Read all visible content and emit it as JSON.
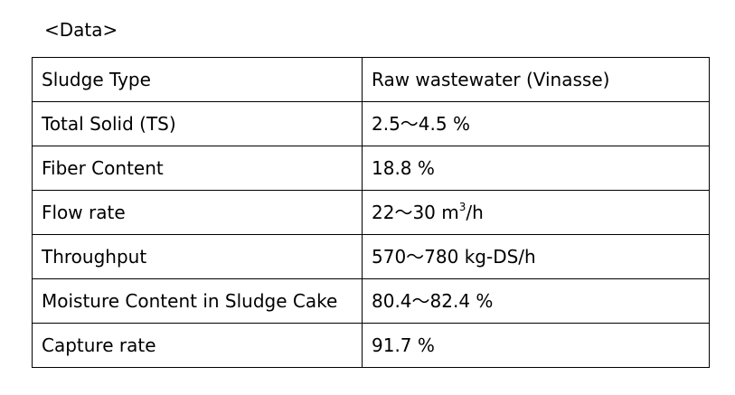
{
  "heading": "<Data>",
  "table": {
    "rows": [
      {
        "label": "Sludge Type",
        "value": "Raw wastewater (Vinasse)"
      },
      {
        "label": "Total Solid (TS)",
        "value": "2.5～4.5 %"
      },
      {
        "label": "Fiber Content",
        "value": "18.8 %"
      },
      {
        "label": "Flow rate",
        "value": "22～30 m",
        "value_sup": "3",
        "value_suffix": "/h"
      },
      {
        "label": "Throughput",
        "value": "570～780 kg-DS/h"
      },
      {
        "label": "Moisture Content in Sludge Cake",
        "value": "80.4～82.4 %"
      },
      {
        "label": "Capture rate",
        "value": "91.7 %"
      }
    ]
  }
}
